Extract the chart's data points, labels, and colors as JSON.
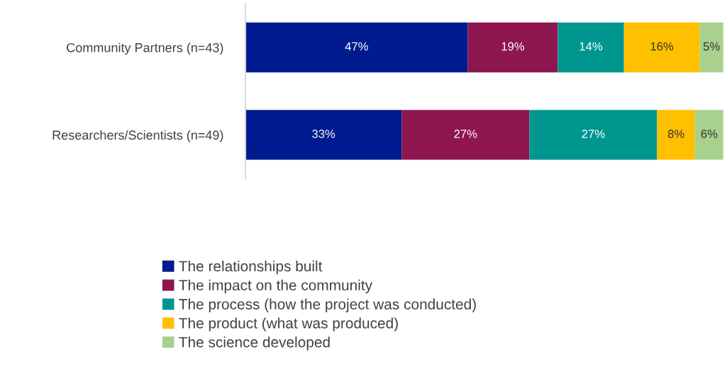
{
  "chart_data": {
    "type": "bar",
    "orientation": "horizontal",
    "stacked": true,
    "categories": [
      "Community Partners (n=43)",
      "Researchers/Scientists (n=49)"
    ],
    "series": [
      {
        "name": "The relationships built",
        "color": "#001a8f",
        "values": [
          47,
          33
        ],
        "value_labels": [
          "47%",
          "33%"
        ]
      },
      {
        "name": "The impact on the community",
        "color": "#8e164e",
        "values": [
          19,
          27
        ],
        "value_labels": [
          "19%",
          "27%"
        ]
      },
      {
        "name": "The process (how the project was conducted)",
        "color": "#009690",
        "values": [
          14,
          27
        ],
        "value_labels": [
          "14%",
          "27%"
        ]
      },
      {
        "name": "The product (what was produced)",
        "color": "#ffc000",
        "values": [
          16,
          8
        ],
        "value_labels": [
          "16%",
          "8%"
        ]
      },
      {
        "name": "The science developed",
        "color": "#a9d18e",
        "values": [
          5,
          6
        ],
        "value_labels": [
          "5%",
          "6%"
        ]
      }
    ],
    "tick_labels": "y",
    "legend": "bottom"
  }
}
